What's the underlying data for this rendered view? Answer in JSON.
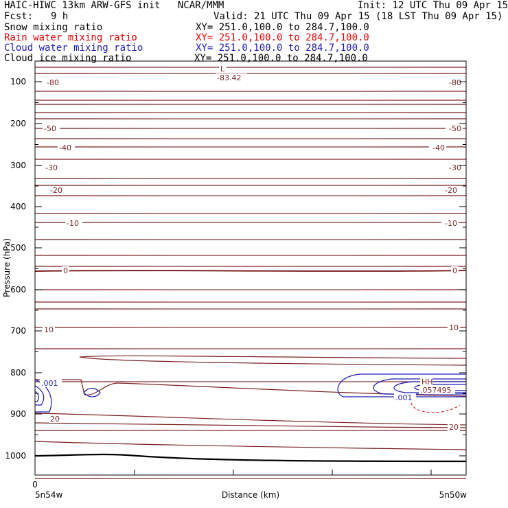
{
  "header": {
    "title_left": "HAIC-HIWC 13km ARW-GFS init   NCAR/MMM",
    "init": "Init: 12 UTC Thu 09 Apr 15",
    "fcst_label": "Fcst:",
    "fcst_value": "9 h",
    "valid": "Valid: 21 UTC Thu 09 Apr 15 (18 LST Thu 09 Apr 15)",
    "fields": [
      {
        "name": "Snow mixing ratio",
        "xy": "XY= 251.0,100.0 to 284.7,100.0",
        "color": "#000000"
      },
      {
        "name": "Rain water mixing ratio",
        "xy": "XY= 251.0,100.0 to 284.7,100.0",
        "color": "#e00000"
      },
      {
        "name": "Cloud water mixing ratio",
        "xy": "XY= 251.0,100.0 to 284.7,100.0",
        "color": "#1a1ab0"
      },
      {
        "name": "Cloud ice mixing ratio",
        "xy": "XY= 251.0,100.0 to 284.7,100.0",
        "color": "#000000"
      }
    ]
  },
  "chart_data": {
    "type": "line",
    "ylabel": "Pressure (hPa)",
    "xlabel": "Distance (km)",
    "y_ticks": [
      100,
      200,
      300,
      400,
      500,
      600,
      700,
      800,
      900,
      1000
    ],
    "x_tick_label": "0",
    "x_end_labels": {
      "left": "5n54w",
      "right": "5n50w"
    },
    "temperature_contour_labels": [
      {
        "value": "-80",
        "p": 107,
        "side": "both"
      },
      {
        "value": "-50",
        "p": 214,
        "side": "both"
      },
      {
        "value": "-40",
        "p": 260,
        "side": "both"
      },
      {
        "value": "-30",
        "p": 311,
        "side": "both"
      },
      {
        "value": "-20",
        "p": 372,
        "side": "both"
      },
      {
        "value": "-10",
        "p": 450,
        "side": "both"
      },
      {
        "value": "0",
        "p": 556,
        "side": "both"
      },
      {
        "value": "10",
        "p": 697,
        "side": "both"
      },
      {
        "value": "20",
        "p": 914,
        "side": "both"
      }
    ],
    "annotations": [
      {
        "text": "L",
        "color": "#7a1f1f"
      },
      {
        "text": "-83.42",
        "color": "#7a1f1f"
      },
      {
        "text": "HH",
        "color": "#7a1f1f"
      },
      {
        "text": ".057495",
        "color": "#7a1f1f"
      },
      {
        "text": ".001",
        "color": "#1a1ab0"
      },
      {
        "text": ".001",
        "color": "#1a1ab0"
      }
    ],
    "colors": {
      "isotherm": "#7a1f1f",
      "cloud_water": "#1a1ab0",
      "rain": "#e00000",
      "terrain": "#000000"
    }
  }
}
